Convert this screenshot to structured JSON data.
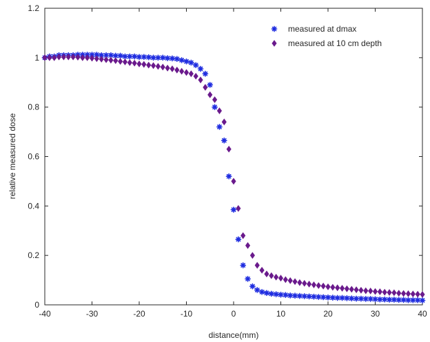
{
  "chart_data": {
    "type": "scatter",
    "title": "",
    "xlabel": "distance(mm)",
    "ylabel": "relative measured dose",
    "xlim": [
      -40,
      40
    ],
    "ylim": [
      0,
      1.2
    ],
    "xticks": [
      -40,
      -30,
      -20,
      -10,
      0,
      10,
      20,
      30,
      40
    ],
    "yticks": [
      0,
      0.2,
      0.4,
      0.6,
      0.8,
      1,
      1.2
    ],
    "xtick_labels": [
      "-40",
      "-30",
      "-20",
      "-10",
      "0",
      "10",
      "20",
      "30",
      "40"
    ],
    "ytick_labels": [
      "0",
      "0.2",
      "0.4",
      "0.6",
      "0.8",
      "1",
      "1.2"
    ],
    "grid": false,
    "legend_position": "top-right",
    "series": [
      {
        "name": "measured at dmax",
        "color": "#1f2de0",
        "marker": "asterisk",
        "x": [
          -40,
          -39,
          -38,
          -37,
          -36,
          -35,
          -34,
          -33,
          -32,
          -31,
          -30,
          -29,
          -28,
          -27,
          -26,
          -25,
          -24,
          -23,
          -22,
          -21,
          -20,
          -19,
          -18,
          -17,
          -16,
          -15,
          -14,
          -13,
          -12,
          -11,
          -10,
          -9,
          -8,
          -7,
          -6,
          -5,
          -4,
          -3,
          -2,
          -1,
          0,
          1,
          2,
          3,
          4,
          5,
          6,
          7,
          8,
          9,
          10,
          11,
          12,
          13,
          14,
          15,
          16,
          17,
          18,
          19,
          20,
          21,
          22,
          23,
          24,
          25,
          26,
          27,
          28,
          29,
          30,
          31,
          32,
          33,
          34,
          35,
          36,
          37,
          38,
          39,
          40
        ],
        "y": [
          1.0,
          1.005,
          1.005,
          1.01,
          1.01,
          1.01,
          1.01,
          1.012,
          1.012,
          1.012,
          1.012,
          1.012,
          1.01,
          1.01,
          1.01,
          1.008,
          1.008,
          1.005,
          1.005,
          1.005,
          1.003,
          1.003,
          1.002,
          1.0,
          1.0,
          1.0,
          0.998,
          0.997,
          0.995,
          0.99,
          0.985,
          0.98,
          0.97,
          0.955,
          0.935,
          0.89,
          0.8,
          0.72,
          0.665,
          0.52,
          0.385,
          0.265,
          0.16,
          0.105,
          0.075,
          0.06,
          0.052,
          0.048,
          0.045,
          0.043,
          0.041,
          0.04,
          0.038,
          0.037,
          0.036,
          0.035,
          0.034,
          0.033,
          0.032,
          0.031,
          0.03,
          0.029,
          0.028,
          0.028,
          0.027,
          0.026,
          0.025,
          0.025,
          0.024,
          0.024,
          0.023,
          0.022,
          0.022,
          0.021,
          0.021,
          0.02,
          0.02,
          0.019,
          0.019,
          0.019,
          0.018
        ]
      },
      {
        "name": "measured at 10 cm depth",
        "color": "#6a1a8c",
        "marker": "diamond",
        "x": [
          -40,
          -39,
          -38,
          -37,
          -36,
          -35,
          -34,
          -33,
          -32,
          -31,
          -30,
          -29,
          -28,
          -27,
          -26,
          -25,
          -24,
          -23,
          -22,
          -21,
          -20,
          -19,
          -18,
          -17,
          -16,
          -15,
          -14,
          -13,
          -12,
          -11,
          -10,
          -9,
          -8,
          -7,
          -6,
          -5,
          -4,
          -3,
          -2,
          -1,
          0,
          1,
          2,
          3,
          4,
          5,
          6,
          7,
          8,
          9,
          10,
          11,
          12,
          13,
          14,
          15,
          16,
          17,
          18,
          19,
          20,
          21,
          22,
          23,
          24,
          25,
          26,
          27,
          28,
          29,
          30,
          31,
          32,
          33,
          34,
          35,
          36,
          37,
          38,
          39,
          40
        ],
        "y": [
          1.0,
          1.0,
          1.0,
          1.003,
          1.003,
          1.003,
          1.003,
          1.002,
          1.0,
          1.0,
          0.998,
          0.996,
          0.994,
          0.992,
          0.99,
          0.988,
          0.985,
          0.983,
          0.98,
          0.978,
          0.975,
          0.973,
          0.97,
          0.968,
          0.965,
          0.962,
          0.958,
          0.955,
          0.95,
          0.945,
          0.94,
          0.935,
          0.925,
          0.91,
          0.88,
          0.85,
          0.83,
          0.785,
          0.74,
          0.63,
          0.5,
          0.39,
          0.28,
          0.24,
          0.2,
          0.16,
          0.14,
          0.125,
          0.118,
          0.112,
          0.108,
          0.102,
          0.098,
          0.094,
          0.09,
          0.087,
          0.084,
          0.081,
          0.078,
          0.076,
          0.073,
          0.071,
          0.069,
          0.067,
          0.065,
          0.063,
          0.061,
          0.059,
          0.057,
          0.056,
          0.054,
          0.053,
          0.051,
          0.05,
          0.049,
          0.047,
          0.046,
          0.045,
          0.044,
          0.043,
          0.042
        ]
      }
    ]
  }
}
